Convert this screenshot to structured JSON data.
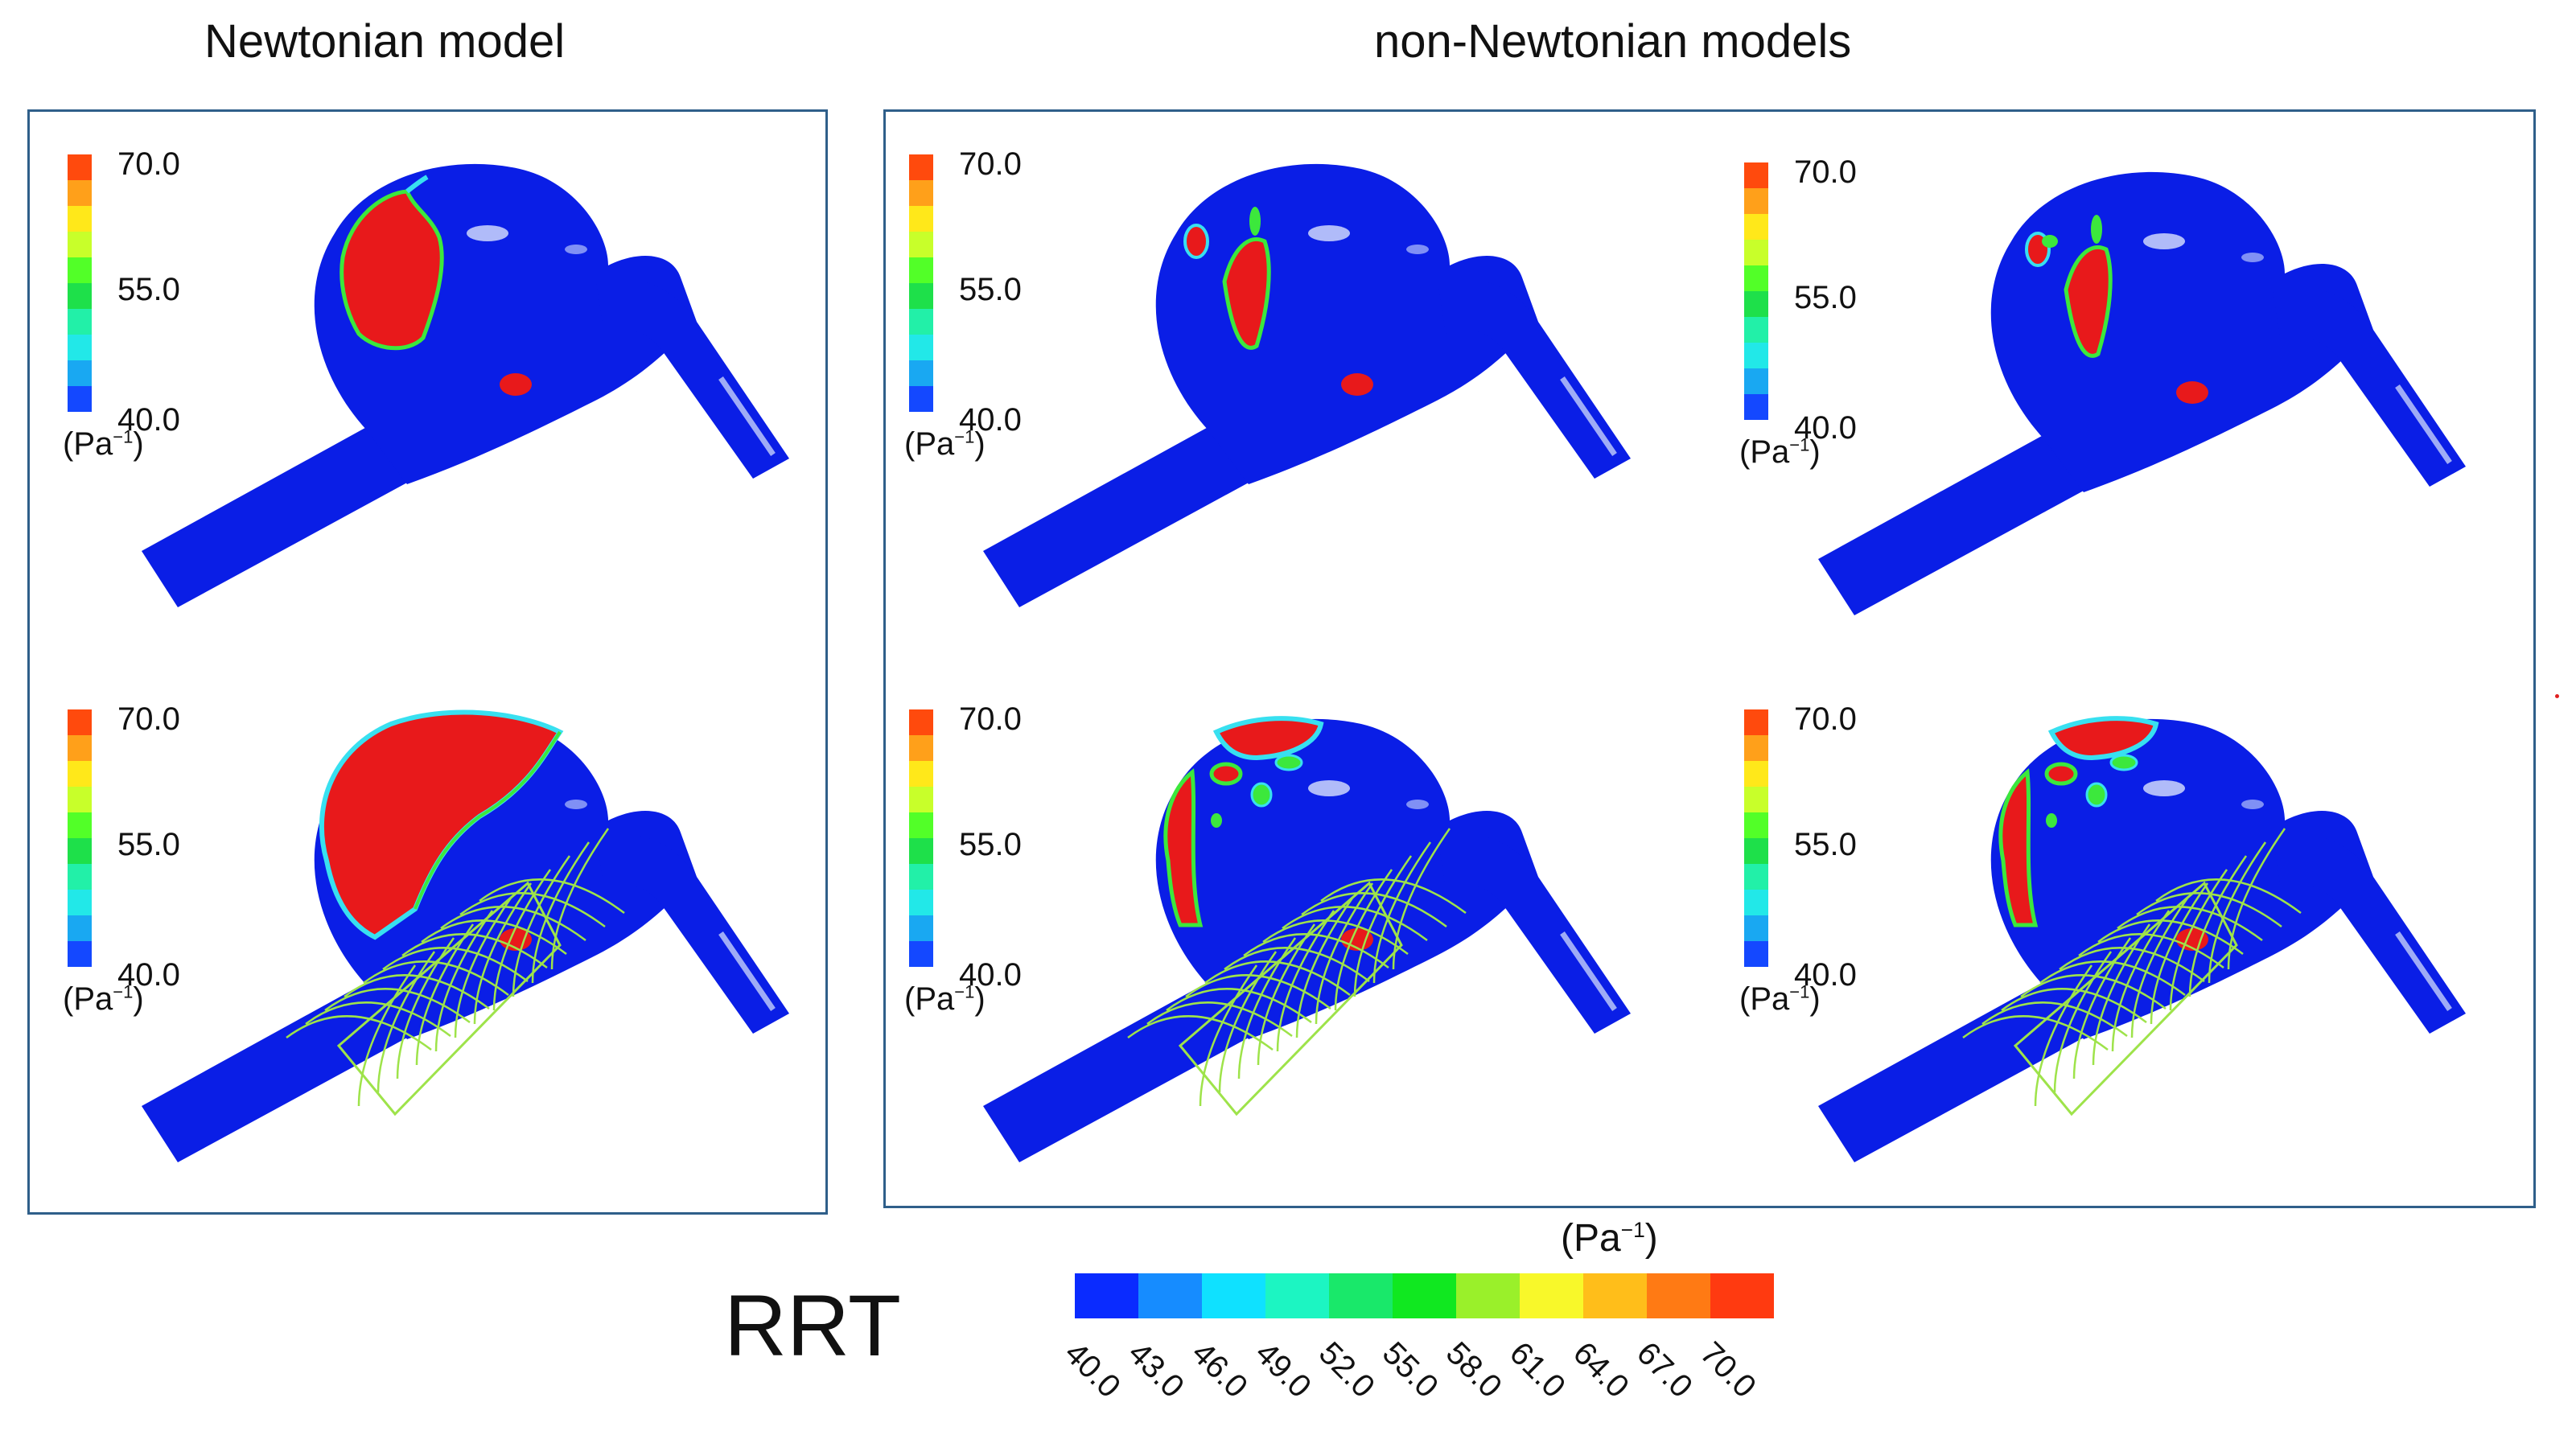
{
  "titles": {
    "left": "Newtonian model",
    "right": "non-Newtonian models"
  },
  "figure_label": "RRT",
  "unit": {
    "prefix": "(Pa",
    "exp": "−1",
    "suffix": ")"
  },
  "mini_legend": {
    "ticks": [
      "70.0",
      "55.0",
      "40.0"
    ],
    "colors": [
      "#ff4a0d",
      "#ffa01a",
      "#ffe81a",
      "#c8ff2a",
      "#52ff28",
      "#1ee04a",
      "#22f0a8",
      "#22e8e8",
      "#19a8f2",
      "#1448ff"
    ]
  },
  "colorbar": {
    "ticks": [
      "40.0",
      "43.0",
      "46.0",
      "49.0",
      "52.0",
      "55.0",
      "58.0",
      "61.0",
      "64.0",
      "67.0",
      "70.0"
    ],
    "colors": [
      "#0a2bff",
      "#168cff",
      "#0fe1ff",
      "#1cf5c2",
      "#19e86a",
      "#10e820",
      "#9af02a",
      "#f8f82a",
      "#ffbe1a",
      "#ff7a14",
      "#ff3a10"
    ]
  },
  "panels": [
    {
      "group": "newtonian",
      "stent": false,
      "variant": "newtonian-no-stent"
    },
    {
      "group": "newtonian",
      "stent": true,
      "variant": "newtonian-stent"
    },
    {
      "group": "non-newtonian",
      "stent": false,
      "variant": "nn-no-stent-a"
    },
    {
      "group": "non-newtonian",
      "stent": false,
      "variant": "nn-no-stent-b"
    },
    {
      "group": "non-newtonian",
      "stent": true,
      "variant": "nn-stent-a"
    },
    {
      "group": "non-newtonian",
      "stent": true,
      "variant": "nn-stent-b"
    }
  ],
  "colors": {
    "vessel": "#0a1ee6",
    "hotspot": "#e8191b",
    "edge_green": "#3ce83c",
    "edge_cyan": "#38e0f0",
    "stent": "#9ee34a",
    "frame": "#2f5f8a"
  }
}
